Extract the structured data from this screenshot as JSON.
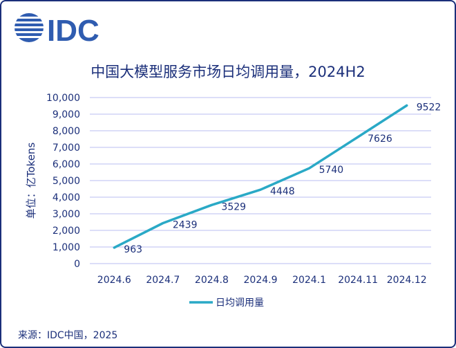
{
  "brand": {
    "name": "IDC"
  },
  "colors": {
    "line": "#2aa9c6",
    "grid": "#b9bef0",
    "text": "#1b2f7a",
    "logo": "#2f5cb0"
  },
  "chart_data": {
    "type": "line",
    "title": "中国大模型服务市场日均调用量，2024H2",
    "ylabel": "单位：亿Tokens",
    "xlabel": "",
    "categories": [
      "2024.6",
      "2024.7",
      "2024.8",
      "2024.9",
      "2024.1",
      "2024.11",
      "2024.12"
    ],
    "series": [
      {
        "name": "日均调用量",
        "values": [
          963,
          2439,
          3529,
          4448,
          5740,
          7626,
          9522
        ]
      }
    ],
    "ylim": [
      0,
      10000
    ],
    "yticks": [
      "0",
      "1,000",
      "2,000",
      "3,000",
      "4,000",
      "5,000",
      "6,000",
      "7,000",
      "8,000",
      "9,000",
      "10,000"
    ],
    "grid": true,
    "legend": "bottom"
  },
  "source": "来源：IDC中国，2025"
}
